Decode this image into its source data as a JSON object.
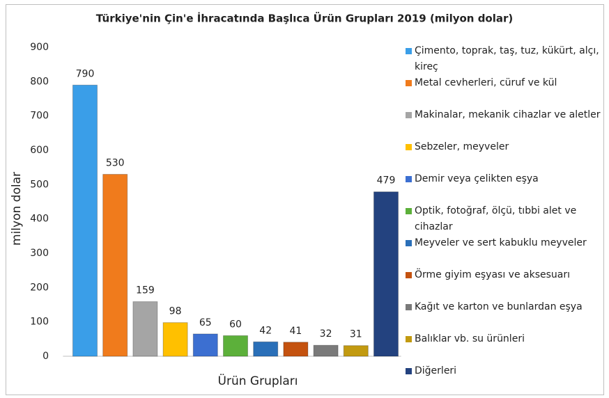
{
  "chart_data": {
    "type": "bar",
    "title": "Türkiye'nin Çin'e  İhracatında Başlıca Ürün Grupları 2019 (milyon dolar)",
    "x_label": "Ürün Grupları",
    "y_label": "milyon dolar",
    "categories": [
      "Çimento, toprak, taş, tuz, kükürt, alçı, kireç",
      "Metal cevherleri, cüruf ve kül",
      "Makinalar, mekanik cihazlar ve aletler",
      "Sebzeler, meyveler",
      "Demir veya çelikten eşya",
      "Optik, fotoğraf, ölçü, tıbbi alet ve cihazlar",
      "Meyveler ve sert kabuklu meyveler",
      "Örme giyim eşyası ve aksesuarı",
      "Kağıt ve karton ve bunlardan eşya",
      "Balıklar vb. su ürünleri",
      "Diğerleri"
    ],
    "values": [
      790,
      530,
      159,
      98,
      65,
      60,
      42,
      41,
      32,
      31,
      479
    ],
    "colors": [
      "#3a9ee8",
      "#f07b1c",
      "#a5a5a5",
      "#ffc000",
      "#3c6fd1",
      "#5cb03a",
      "#2a6fb8",
      "#c4520f",
      "#7a7a7a",
      "#c29a10",
      "#23427f"
    ],
    "ylim": [
      0,
      900
    ],
    "yticks": [
      0,
      100,
      200,
      300,
      400,
      500,
      600,
      700,
      800,
      900
    ],
    "grid": false,
    "legend": "right"
  }
}
